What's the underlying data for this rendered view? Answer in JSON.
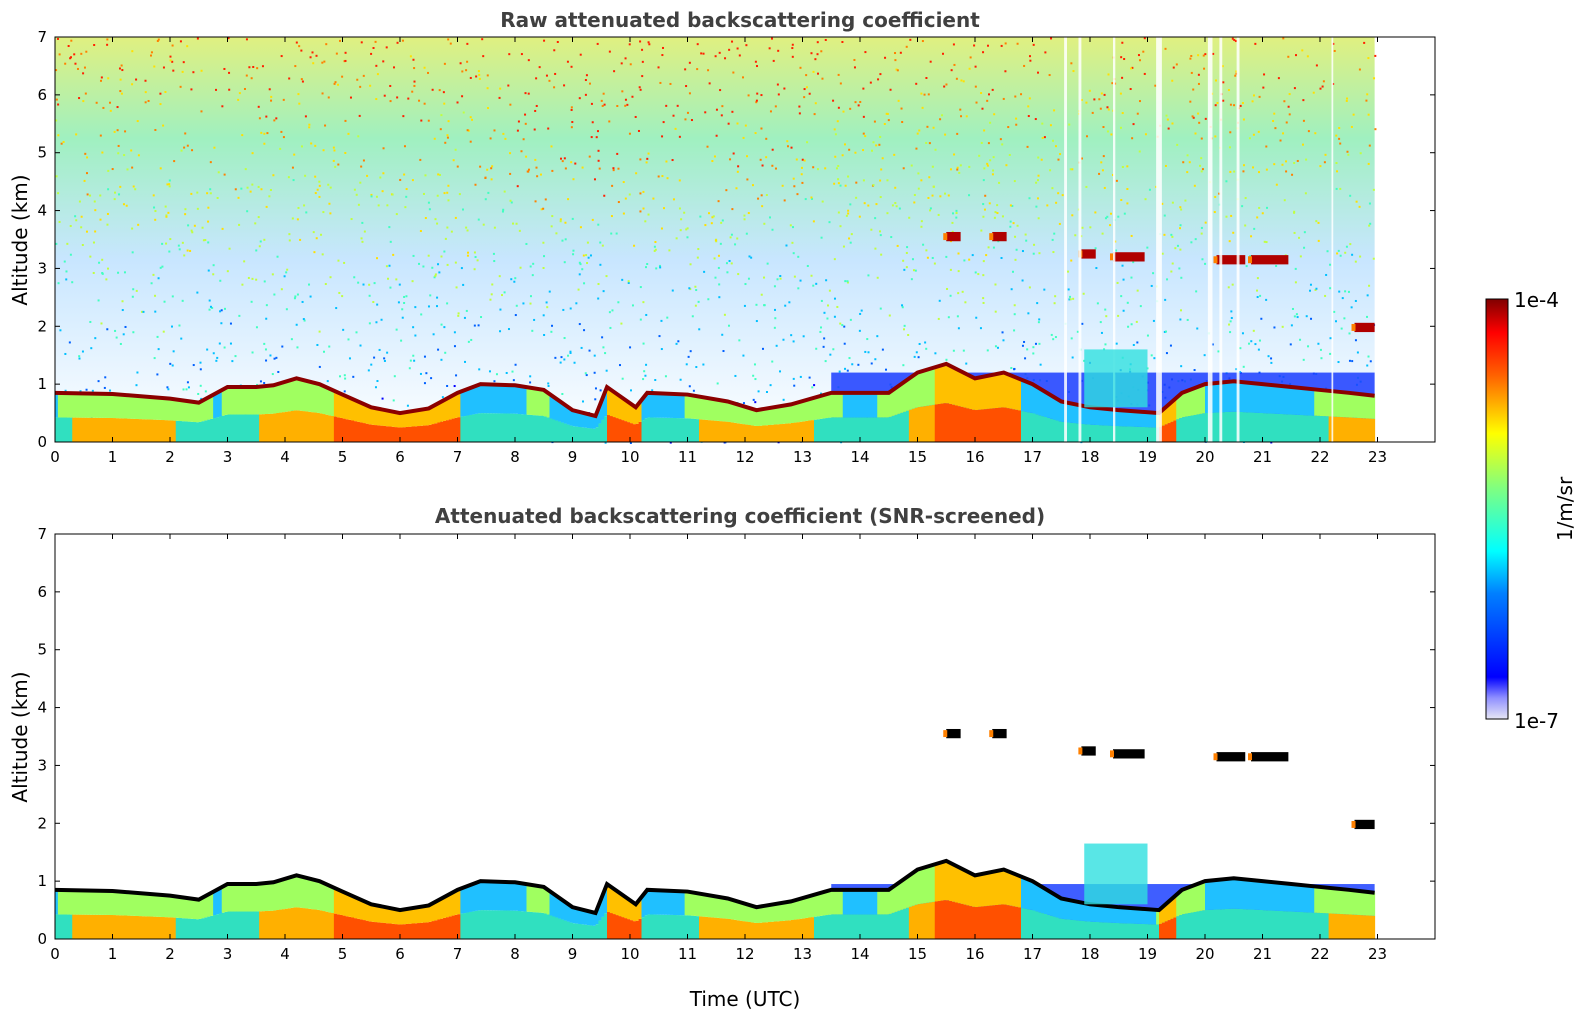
{
  "chart_data": [
    {
      "type": "heatmap",
      "title": "Raw attenuated backscattering coefficient",
      "xlabel": "",
      "ylabel": "Altitude (km)",
      "xlim": [
        0,
        24
      ],
      "ylim": [
        0,
        7
      ],
      "x_ticks": [
        "0",
        "1",
        "2",
        "3",
        "4",
        "5",
        "6",
        "7",
        "8",
        "9",
        "10",
        "11",
        "12",
        "13",
        "14",
        "15",
        "16",
        "17",
        "18",
        "19",
        "20",
        "21",
        "22",
        "23"
      ],
      "y_ticks": [
        "0",
        "1",
        "2",
        "3",
        "4",
        "5",
        "6",
        "7"
      ],
      "data_end_time": 22.95,
      "cloud_layers": [
        {
          "start": 15.5,
          "end": 15.75,
          "altitude": 3.55
        },
        {
          "start": 16.3,
          "end": 16.55,
          "altitude": 3.55
        },
        {
          "start": 17.85,
          "end": 18.1,
          "altitude": 3.25
        },
        {
          "start": 18.4,
          "end": 18.95,
          "altitude": 3.2
        },
        {
          "start": 20.2,
          "end": 20.7,
          "altitude": 3.15
        },
        {
          "start": 20.8,
          "end": 21.45,
          "altitude": 3.15
        },
        {
          "start": 22.6,
          "end": 22.95,
          "altitude": 1.98
        }
      ],
      "boundary_layer_top": [
        [
          0,
          0.85
        ],
        [
          1,
          0.83
        ],
        [
          2,
          0.75
        ],
        [
          2.5,
          0.68
        ],
        [
          3,
          0.95
        ],
        [
          3.5,
          0.95
        ],
        [
          3.8,
          0.98
        ],
        [
          4.2,
          1.1
        ],
        [
          4.6,
          1.0
        ],
        [
          5.0,
          0.82
        ],
        [
          5.5,
          0.6
        ],
        [
          6.0,
          0.5
        ],
        [
          6.5,
          0.58
        ],
        [
          7.0,
          0.85
        ],
        [
          7.4,
          1.0
        ],
        [
          8.0,
          0.98
        ],
        [
          8.5,
          0.9
        ],
        [
          9.0,
          0.55
        ],
        [
          9.4,
          0.45
        ],
        [
          9.6,
          0.95
        ],
        [
          10.1,
          0.6
        ],
        [
          10.3,
          0.85
        ],
        [
          11,
          0.82
        ],
        [
          11.7,
          0.7
        ],
        [
          12.2,
          0.55
        ],
        [
          12.8,
          0.65
        ],
        [
          13.5,
          0.85
        ],
        [
          14.5,
          0.85
        ],
        [
          15.0,
          1.2
        ],
        [
          15.5,
          1.35
        ],
        [
          16.0,
          1.1
        ],
        [
          16.5,
          1.2
        ],
        [
          17.0,
          1.0
        ],
        [
          17.5,
          0.7
        ],
        [
          18.0,
          0.6
        ],
        [
          18.5,
          0.55
        ],
        [
          19.2,
          0.5
        ],
        [
          19.6,
          0.85
        ],
        [
          20.0,
          1.0
        ],
        [
          20.5,
          1.05
        ],
        [
          21.0,
          1.0
        ],
        [
          21.5,
          0.95
        ],
        [
          22.0,
          0.9
        ],
        [
          22.5,
          0.85
        ],
        [
          22.95,
          0.8
        ]
      ]
    },
    {
      "type": "heatmap",
      "title": "Attenuated backscattering coefficient (SNR-screened)",
      "xlabel": "Time (UTC)",
      "ylabel": "Altitude (km)",
      "xlim": [
        0,
        24
      ],
      "ylim": [
        0,
        7
      ],
      "x_ticks": [
        "0",
        "1",
        "2",
        "3",
        "4",
        "5",
        "6",
        "7",
        "8",
        "9",
        "10",
        "11",
        "12",
        "13",
        "14",
        "15",
        "16",
        "17",
        "18",
        "19",
        "20",
        "21",
        "22",
        "23"
      ],
      "y_ticks": [
        "0",
        "1",
        "2",
        "3",
        "4",
        "5",
        "6",
        "7"
      ]
    }
  ],
  "colorbar": {
    "label": "1/m/sr",
    "max_label": "1e-4",
    "min_label": "1e-7",
    "scale": "log",
    "colormap": "jet",
    "colors": [
      "#e6e6f5",
      "#0000ff",
      "#00ffff",
      "#ffff00",
      "#ff0000",
      "#800000"
    ]
  }
}
